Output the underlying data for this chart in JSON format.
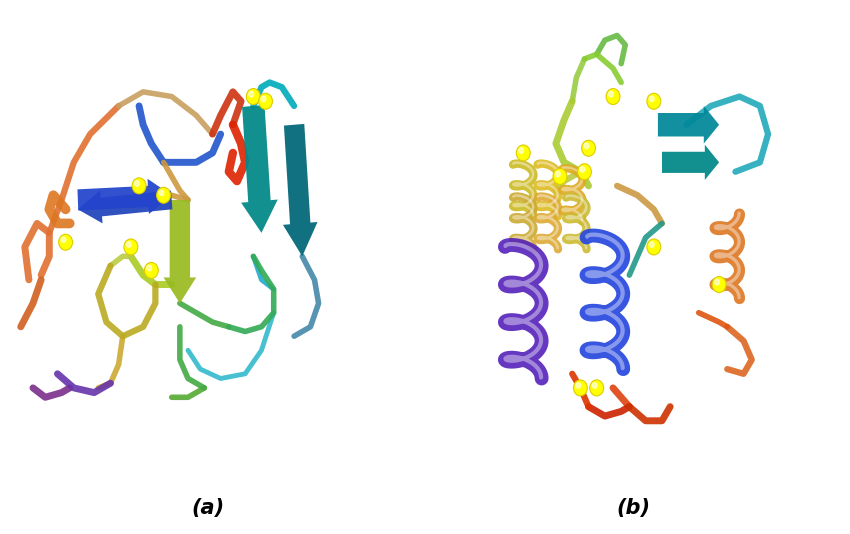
{
  "label_a": "(a)",
  "label_b": "(b)",
  "label_fontsize": 15,
  "label_fontweight": "bold",
  "label_fontstyle": "italic",
  "background_color": "#ffffff",
  "fig_width": 8.5,
  "fig_height": 5.34
}
